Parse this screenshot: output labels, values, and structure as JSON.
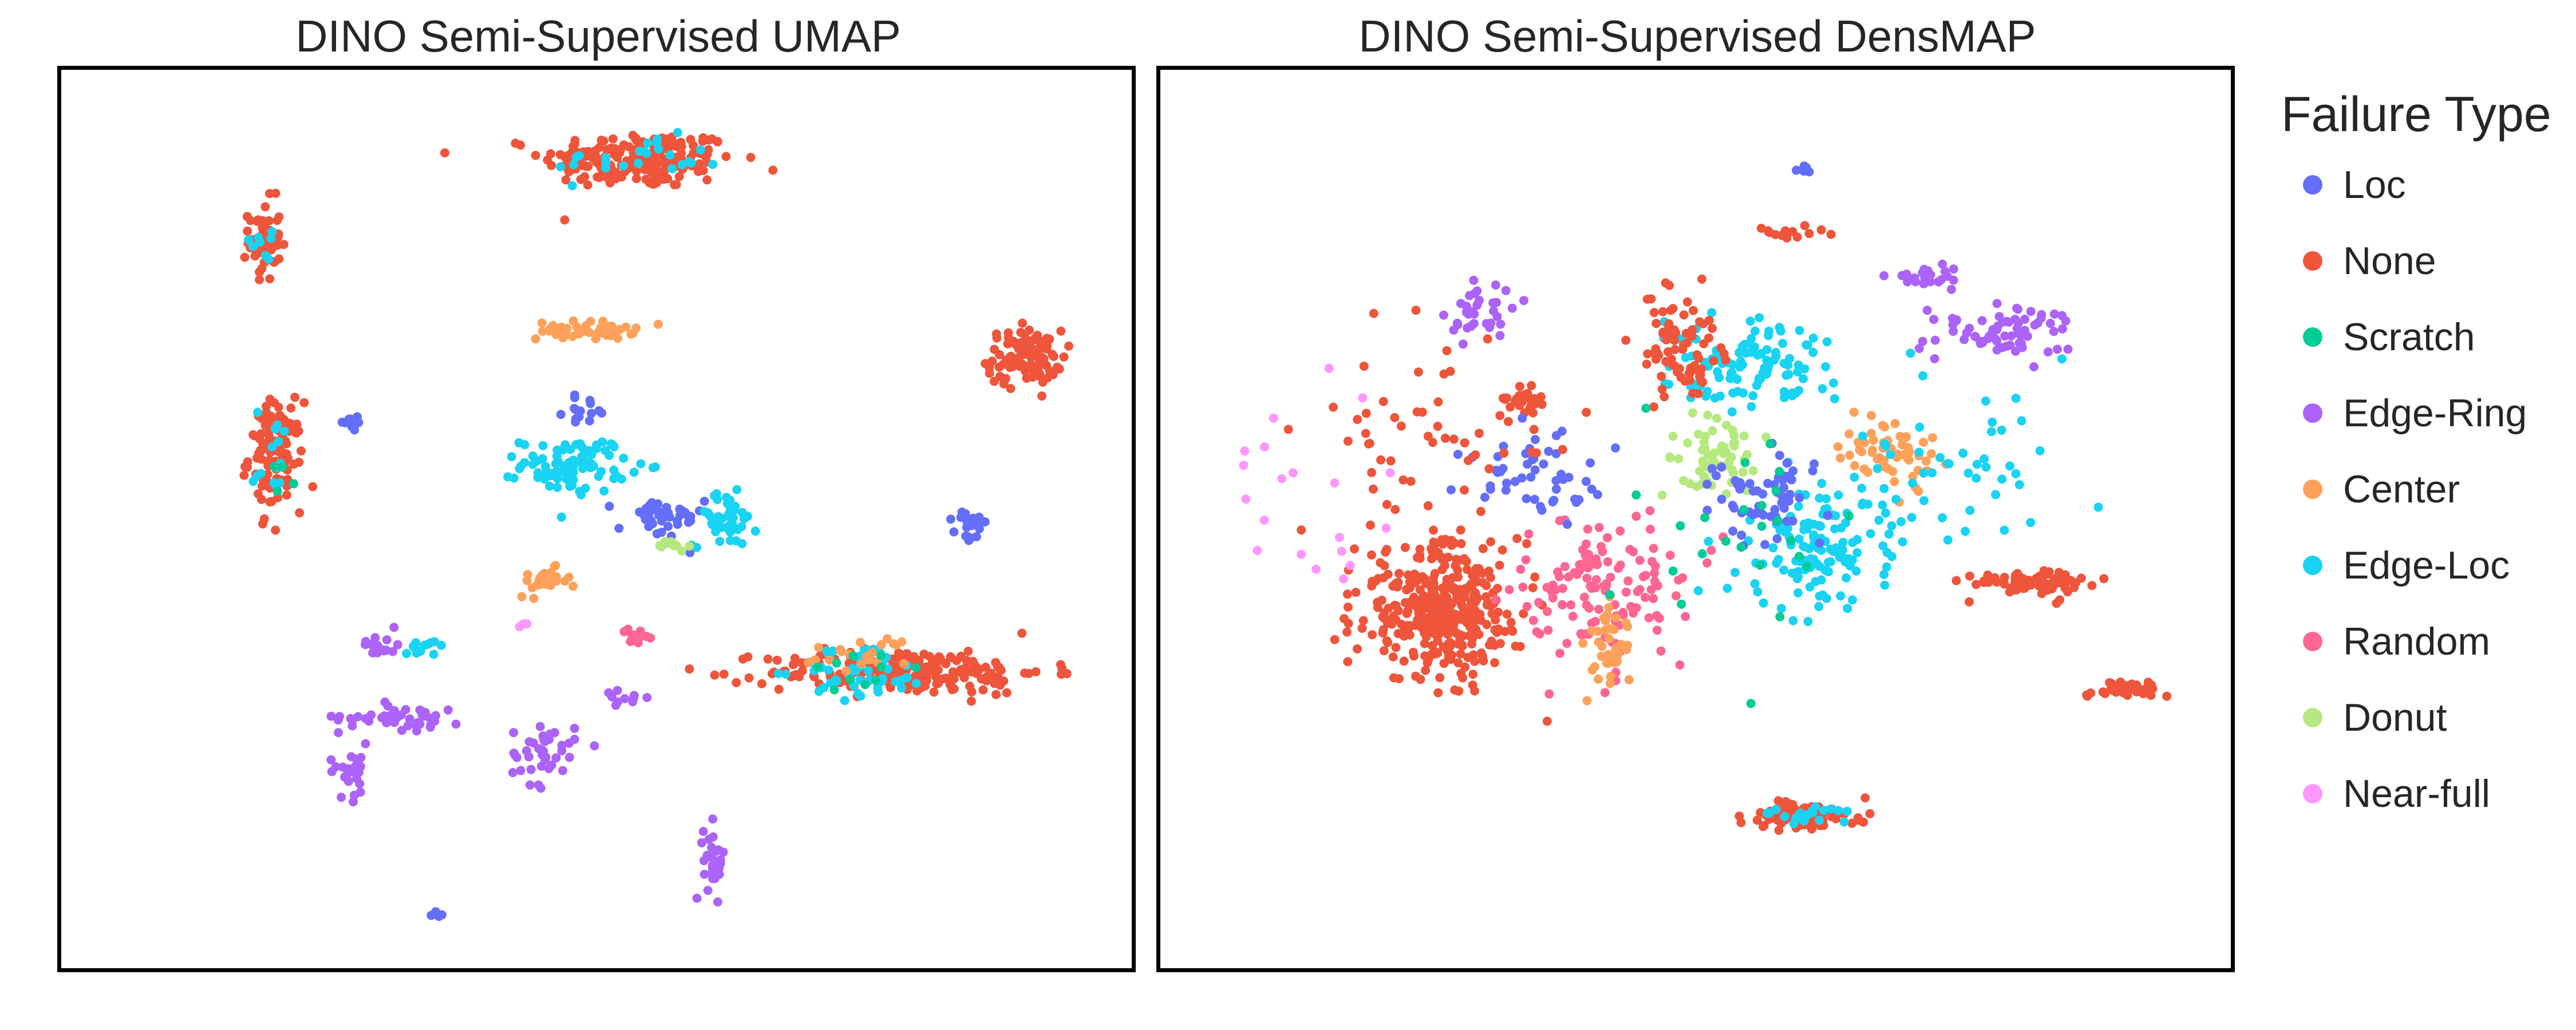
{
  "legend": {
    "title": "Failure Type",
    "items": [
      {
        "label": "Loc",
        "color": "#636efa"
      },
      {
        "label": "None",
        "color": "#ef553b"
      },
      {
        "label": "Scratch",
        "color": "#00cc96"
      },
      {
        "label": "Edge-Ring",
        "color": "#ab63fa"
      },
      {
        "label": "Center",
        "color": "#ffa15a"
      },
      {
        "label": "Edge-Loc",
        "color": "#19d3f3"
      },
      {
        "label": "Random",
        "color": "#ff6692"
      },
      {
        "label": "Donut",
        "color": "#b6e880"
      },
      {
        "label": "Near-full",
        "color": "#ff97ff"
      }
    ]
  },
  "chart_data": [
    {
      "type": "scatter",
      "title": "DINO Semi-Supervised UMAP",
      "xlabel": "",
      "ylabel": "",
      "xlim": [
        0,
        100
      ],
      "ylim": [
        0,
        100
      ],
      "grid": false,
      "legend_position": "right",
      "axes_ticks": false,
      "clusters": [
        {
          "category": "None",
          "cx": 54,
          "cy": 90,
          "rx": 9,
          "ry": 3.2,
          "n": 200
        },
        {
          "category": "Edge-Loc",
          "cx": 54,
          "cy": 90,
          "rx": 8,
          "ry": 2.5,
          "n": 25
        },
        {
          "category": "None",
          "cx": 19,
          "cy": 81,
          "rx": 1.5,
          "ry": 4.5,
          "n": 60
        },
        {
          "category": "Edge-Loc",
          "cx": 19,
          "cy": 81,
          "rx": 1.2,
          "ry": 4,
          "n": 8
        },
        {
          "category": "None",
          "cx": 90,
          "cy": 68,
          "rx": 3.5,
          "ry": 3,
          "n": 100
        },
        {
          "category": "None",
          "cx": 20,
          "cy": 57,
          "rx": 2.5,
          "ry": 6,
          "n": 120
        },
        {
          "category": "Edge-Loc",
          "cx": 20,
          "cy": 57,
          "rx": 2,
          "ry": 5.5,
          "n": 14
        },
        {
          "category": "Scratch",
          "cx": 20,
          "cy": 57,
          "rx": 2,
          "ry": 5.5,
          "n": 5
        },
        {
          "category": "Center",
          "cx": 49,
          "cy": 71,
          "rx": 4.5,
          "ry": 1,
          "n": 50
        },
        {
          "category": "Edge-Loc",
          "cx": 48,
          "cy": 56,
          "rx": 5,
          "ry": 3,
          "n": 90
        },
        {
          "category": "Loc",
          "cx": 56,
          "cy": 50,
          "rx": 4,
          "ry": 2.5,
          "n": 40
        },
        {
          "category": "Edge-Loc",
          "cx": 62,
          "cy": 50,
          "rx": 3,
          "ry": 3,
          "n": 45
        },
        {
          "category": "Loc",
          "cx": 49,
          "cy": 62,
          "rx": 2,
          "ry": 1.5,
          "n": 15
        },
        {
          "category": "Center",
          "cx": 45,
          "cy": 43,
          "rx": 2.5,
          "ry": 1.5,
          "n": 25
        },
        {
          "category": "Donut",
          "cx": 57,
          "cy": 47,
          "rx": 1.5,
          "ry": 0.7,
          "n": 12
        },
        {
          "category": "Loc",
          "cx": 85,
          "cy": 49,
          "rx": 1.5,
          "ry": 2,
          "n": 20
        },
        {
          "category": "Loc",
          "cx": 27,
          "cy": 61,
          "rx": 1.5,
          "ry": 1.2,
          "n": 10
        },
        {
          "category": "None",
          "cx": 79,
          "cy": 33,
          "rx": 13,
          "ry": 2.5,
          "n": 220
        },
        {
          "category": "Edge-Loc",
          "cx": 75,
          "cy": 33,
          "rx": 6,
          "ry": 3,
          "n": 50
        },
        {
          "category": "Center",
          "cx": 75,
          "cy": 35,
          "rx": 6,
          "ry": 2,
          "n": 20
        },
        {
          "category": "Scratch",
          "cx": 75,
          "cy": 33,
          "rx": 6,
          "ry": 3,
          "n": 10
        },
        {
          "category": "Edge-Ring",
          "cx": 32,
          "cy": 28,
          "rx": 6,
          "ry": 1.5,
          "n": 45
        },
        {
          "category": "Edge-Ring",
          "cx": 27,
          "cy": 22,
          "rx": 2,
          "ry": 3,
          "n": 25
        },
        {
          "category": "Edge-Ring",
          "cx": 45,
          "cy": 24,
          "rx": 3,
          "ry": 3.5,
          "n": 40
        },
        {
          "category": "Edge-Ring",
          "cx": 61,
          "cy": 12,
          "rx": 1,
          "ry": 4,
          "n": 30
        },
        {
          "category": "Edge-Ring",
          "cx": 30,
          "cy": 36,
          "rx": 2,
          "ry": 1.5,
          "n": 15
        },
        {
          "category": "Edge-Loc",
          "cx": 34,
          "cy": 36,
          "rx": 2,
          "ry": 0.8,
          "n": 12
        },
        {
          "category": "Random",
          "cx": 54,
          "cy": 37,
          "rx": 2,
          "ry": 0.7,
          "n": 12
        },
        {
          "category": "Near-full",
          "cx": 43,
          "cy": 38,
          "rx": 0.5,
          "ry": 0.5,
          "n": 3
        },
        {
          "category": "Edge-Ring",
          "cx": 52,
          "cy": 30,
          "rx": 3,
          "ry": 1,
          "n": 10
        },
        {
          "category": "Loc",
          "cx": 35,
          "cy": 6,
          "rx": 0.8,
          "ry": 0.6,
          "n": 4
        }
      ]
    },
    {
      "type": "scatter",
      "title": "DINO Semi-Supervised DensMAP",
      "xlabel": "",
      "ylabel": "",
      "xlim": [
        0,
        100
      ],
      "ylim": [
        0,
        100
      ],
      "grid": false,
      "legend_position": "right",
      "axes_ticks": false,
      "clusters": [
        {
          "category": "None",
          "cx": 26,
          "cy": 40,
          "rx": 7.5,
          "ry": 7.5,
          "n": 380
        },
        {
          "category": "Edge-Ring",
          "cx": 30,
          "cy": 73,
          "rx": 3,
          "ry": 4,
          "n": 35
        },
        {
          "category": "None",
          "cx": 34,
          "cy": 63,
          "rx": 2.5,
          "ry": 1.5,
          "n": 30
        },
        {
          "category": "Random",
          "cx": 42,
          "cy": 42,
          "rx": 8,
          "ry": 8,
          "n": 130
        },
        {
          "category": "Center",
          "cx": 42,
          "cy": 36,
          "rx": 2,
          "ry": 6,
          "n": 40
        },
        {
          "category": "Donut",
          "cx": 52,
          "cy": 57,
          "rx": 4,
          "ry": 4,
          "n": 60
        },
        {
          "category": "Edge-Loc",
          "cx": 55,
          "cy": 67,
          "rx": 8,
          "ry": 5,
          "n": 110
        },
        {
          "category": "None",
          "cx": 48,
          "cy": 69,
          "rx": 4,
          "ry": 6,
          "n": 80
        },
        {
          "category": "Edge-Loc",
          "cx": 62,
          "cy": 47,
          "rx": 7,
          "ry": 7,
          "n": 130
        },
        {
          "category": "Loc",
          "cx": 56,
          "cy": 52,
          "rx": 5,
          "ry": 5,
          "n": 60
        },
        {
          "category": "Center",
          "cx": 68,
          "cy": 58,
          "rx": 5,
          "ry": 4,
          "n": 60
        },
        {
          "category": "Edge-Ring",
          "cx": 78,
          "cy": 71,
          "rx": 6,
          "ry": 2.5,
          "n": 70
        },
        {
          "category": "Edge-Ring",
          "cx": 72,
          "cy": 77,
          "rx": 3,
          "ry": 1.2,
          "n": 25
        },
        {
          "category": "None",
          "cx": 81,
          "cy": 43,
          "rx": 5.5,
          "ry": 1.5,
          "n": 70
        },
        {
          "category": "None",
          "cx": 90,
          "cy": 31,
          "rx": 3.5,
          "ry": 1,
          "n": 50
        },
        {
          "category": "None",
          "cx": 60,
          "cy": 17,
          "rx": 5.5,
          "ry": 1.5,
          "n": 90
        },
        {
          "category": "Edge-Loc",
          "cx": 60,
          "cy": 17,
          "rx": 5,
          "ry": 1,
          "n": 20
        },
        {
          "category": "Loc",
          "cx": 35,
          "cy": 55,
          "rx": 6,
          "ry": 5,
          "n": 50
        },
        {
          "category": "Near-full",
          "cx": 15,
          "cy": 55,
          "rx": 8,
          "ry": 18,
          "n": 20
        },
        {
          "category": "None",
          "cx": 25,
          "cy": 60,
          "rx": 12,
          "ry": 12,
          "n": 50
        },
        {
          "category": "Edge-Loc",
          "cx": 73,
          "cy": 55,
          "rx": 10,
          "ry": 14,
          "n": 50
        },
        {
          "category": "Scratch",
          "cx": 55,
          "cy": 50,
          "rx": 10,
          "ry": 12,
          "n": 25
        },
        {
          "category": "Loc",
          "cx": 60,
          "cy": 89,
          "rx": 0.7,
          "ry": 0.6,
          "n": 6
        },
        {
          "category": "None",
          "cx": 58,
          "cy": 82,
          "rx": 4,
          "ry": 0.8,
          "n": 14
        }
      ]
    }
  ],
  "panels": {
    "umap_title": "DINO Semi-Supervised UMAP",
    "dens_title": "DINO Semi-Supervised DensMAP"
  }
}
